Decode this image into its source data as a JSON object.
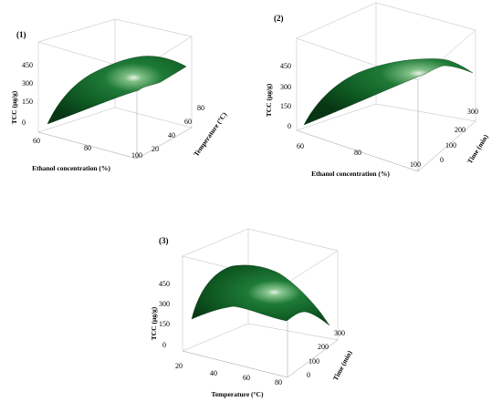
{
  "chart_data": [
    {
      "type": "surface",
      "panel_label": "(1)",
      "zlabel": "TCC (μg/g)",
      "xlabel": "Ethanol concentration (%)",
      "ylabel": "Temperature (°C)",
      "x_ticks": [
        "60",
        "80",
        "100"
      ],
      "y_ticks": [
        "20",
        "40",
        "60",
        "80"
      ],
      "z_ticks": [
        "0",
        "150",
        "300",
        "450"
      ],
      "xlim": [
        60,
        100
      ],
      "ylim": [
        20,
        80
      ],
      "zlim": [
        0,
        450
      ],
      "surface_color": "#0f5a22",
      "corners": [
        {
          "x": 60,
          "y": 20,
          "z": 0
        },
        {
          "x": 60,
          "y": 80,
          "z": 200
        },
        {
          "x": 100,
          "y": 80,
          "z": 370
        },
        {
          "x": 100,
          "y": 20,
          "z": 270
        }
      ],
      "peak": {
        "x": 85,
        "y": 60,
        "z": 430
      }
    },
    {
      "type": "surface",
      "panel_label": "(2)",
      "zlabel": "TCC (μg/g)",
      "xlabel": "Ethanol concentration (%)",
      "ylabel": "Time (min)",
      "x_ticks": [
        "60",
        "80",
        "100"
      ],
      "y_ticks": [
        "0",
        "100",
        "200",
        "300"
      ],
      "z_ticks": [
        "0",
        "150",
        "300",
        "450"
      ],
      "xlim": [
        60,
        100
      ],
      "ylim": [
        0,
        300
      ],
      "zlim": [
        0,
        450
      ],
      "surface_color": "#0f5a22",
      "corners": [
        {
          "x": 60,
          "y": 0,
          "z": 0
        },
        {
          "x": 60,
          "y": 300,
          "z": 190
        },
        {
          "x": 100,
          "y": 300,
          "z": 380
        },
        {
          "x": 100,
          "y": 0,
          "z": 330
        }
      ],
      "peak": {
        "x": 85,
        "y": 200,
        "z": 430
      }
    },
    {
      "type": "surface",
      "panel_label": "(3)",
      "zlabel": "TCC (μg/g)",
      "xlabel": "Temperature (°C)",
      "ylabel": "Time (min)",
      "x_ticks": [
        "20",
        "40",
        "60",
        "80"
      ],
      "y_ticks": [
        "0",
        "100",
        "200",
        "300"
      ],
      "z_ticks": [
        "0",
        "150",
        "300",
        "450"
      ],
      "xlim": [
        20,
        80
      ],
      "ylim": [
        0,
        300
      ],
      "zlim": [
        0,
        450
      ],
      "surface_color": "#0f5a22",
      "corners": [
        {
          "x": 20,
          "y": 0,
          "z": 200
        },
        {
          "x": 20,
          "y": 300,
          "z": 380
        },
        {
          "x": 80,
          "y": 300,
          "z": 70
        },
        {
          "x": 80,
          "y": 0,
          "z": 190
        }
      ],
      "peak": {
        "x": 50,
        "y": 150,
        "z": 440
      }
    }
  ]
}
